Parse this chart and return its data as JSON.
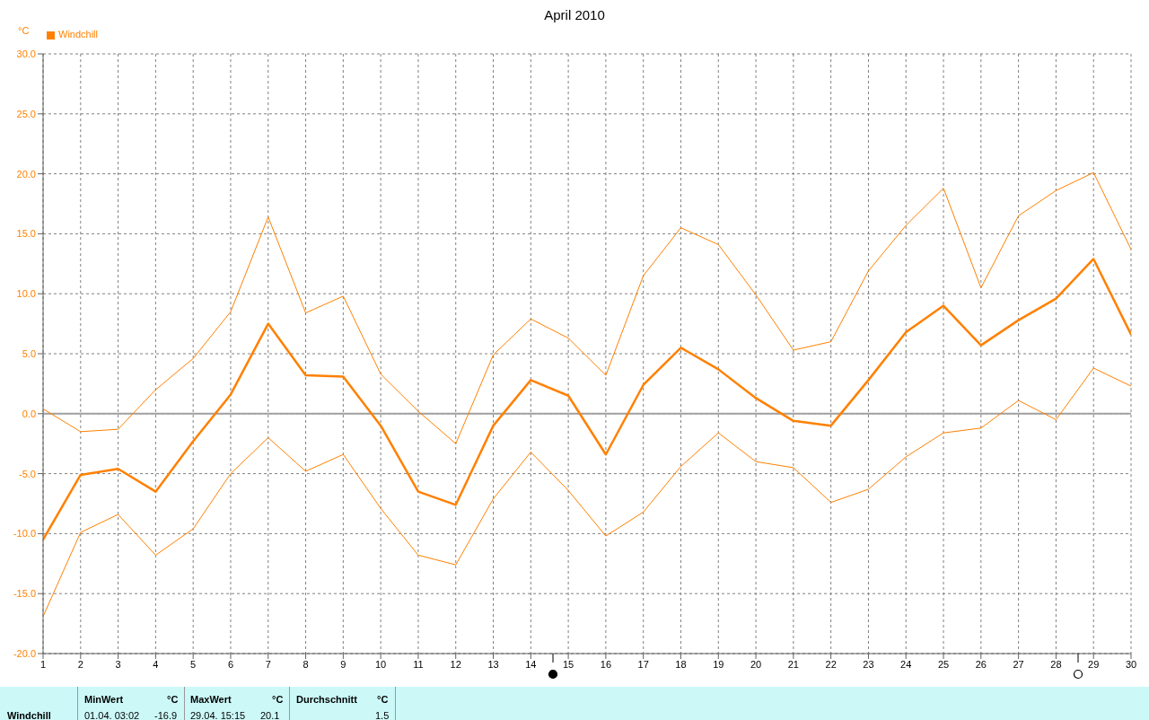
{
  "chart_data": {
    "type": "line",
    "title": "April 2010",
    "ylabel": "°C",
    "x": [
      1,
      2,
      3,
      4,
      5,
      6,
      7,
      8,
      9,
      10,
      11,
      12,
      13,
      14,
      15,
      16,
      17,
      18,
      19,
      20,
      21,
      22,
      23,
      24,
      25,
      26,
      27,
      28,
      29,
      30
    ],
    "series": [
      {
        "color": "#ff8000",
        "values": [
          0.4,
          -1.5,
          -1.3,
          2.0,
          4.6,
          8.5,
          16.4,
          8.4,
          9.8,
          3.3,
          0.2,
          -2.5,
          4.9,
          7.9,
          6.3,
          3.2,
          11.5,
          15.5,
          14.1,
          9.9,
          5.3,
          6.0,
          11.9,
          15.7,
          18.8,
          10.5,
          16.5,
          18.6,
          20.1,
          13.7
        ]
      },
      {
        "name": "Windchill",
        "color": "#ff8000",
        "values": [
          -10.5,
          -5.1,
          -4.6,
          -6.5,
          -2.3,
          1.6,
          7.5,
          3.2,
          3.1,
          -1.0,
          -6.5,
          -7.6,
          -1.0,
          2.8,
          1.5,
          -3.4,
          2.4,
          5.5,
          3.7,
          1.3,
          -0.6,
          -1.0,
          2.8,
          6.8,
          9.0,
          5.7,
          7.8,
          9.6,
          12.9,
          6.6
        ]
      },
      {
        "color": "#ff8000",
        "values": [
          -16.9,
          -9.9,
          -8.4,
          -11.8,
          -9.6,
          -5.0,
          -2.0,
          -4.8,
          -3.4,
          -7.9,
          -11.8,
          -12.6,
          -7.1,
          -3.2,
          -6.4,
          -10.2,
          -8.2,
          -4.4,
          -1.6,
          -4.0,
          -4.5,
          -7.4,
          -6.3,
          -3.6,
          -1.6,
          -1.2,
          1.1,
          -0.5,
          3.8,
          2.3
        ]
      }
    ],
    "xlim": [
      1,
      30
    ],
    "xticks": [
      1,
      2,
      3,
      4,
      5,
      6,
      7,
      8,
      9,
      10,
      11,
      12,
      13,
      14,
      15,
      16,
      17,
      18,
      19,
      20,
      21,
      22,
      23,
      24,
      25,
      26,
      27,
      28,
      29,
      30
    ],
    "ylim": [
      -20,
      30
    ],
    "yticks": [
      {
        "value": -20,
        "label": "-20.0"
      },
      {
        "value": -15,
        "label": "-15.0"
      },
      {
        "value": -10,
        "label": "-10.0"
      },
      {
        "value": -5,
        "label": "-5.0"
      },
      {
        "value": 0,
        "label": "0.0"
      },
      {
        "value": 5,
        "label": "5.0"
      },
      {
        "value": 10,
        "label": "10.0"
      },
      {
        "value": 15,
        "label": "15.0"
      },
      {
        "value": 20,
        "label": "20.0"
      },
      {
        "value": 25,
        "label": "25.0"
      },
      {
        "value": 30,
        "label": "30.0"
      }
    ],
    "ref_lines": [
      {
        "axis": "y",
        "value": 0,
        "color": "#a0a0a0"
      }
    ],
    "grid": true,
    "legend": "top left",
    "marker": "none",
    "line_style": "solid",
    "annotations": [
      "Windchill",
      "MinWert",
      "°C",
      "01.04.  03:02",
      "-16.9",
      "MaxWert",
      "°C",
      "29.04.  15:15",
      "20.1",
      "Durchschnitt",
      "°C",
      "1.5"
    ]
  }
}
